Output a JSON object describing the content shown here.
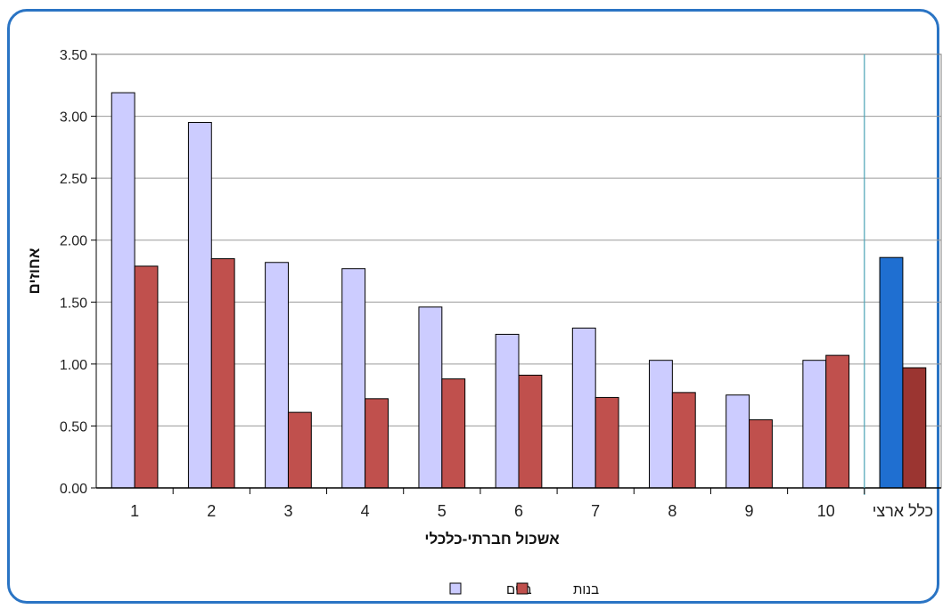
{
  "page_title": "",
  "colors": {
    "boys": "#ccccff",
    "girls": "#c0504d",
    "boys_national": "#1f6fd1",
    "girls_national": "#9b3531",
    "frame": "#2a74c4",
    "separator": "#4aa3b5"
  },
  "chart_data": {
    "type": "bar",
    "title": "",
    "xlabel": "אשכול חברתי-כלכלי",
    "ylabel": "אחוזים",
    "ylim": [
      0,
      3.5
    ],
    "yticks": [
      "0.00",
      "0.50",
      "1.00",
      "1.50",
      "2.00",
      "2.50",
      "3.00",
      "3.50"
    ],
    "grid": true,
    "legend_position": "bottom",
    "categories": [
      "1",
      "2",
      "3",
      "4",
      "5",
      "6",
      "7",
      "8",
      "9",
      "10",
      "כלל ארצי"
    ],
    "series": [
      {
        "name": "בנים",
        "values": [
          3.19,
          2.95,
          1.82,
          1.77,
          1.46,
          1.24,
          1.29,
          1.03,
          0.75,
          1.03,
          1.86
        ]
      },
      {
        "name": "בנות",
        "values": [
          1.79,
          1.85,
          0.61,
          0.72,
          0.88,
          0.91,
          0.73,
          0.77,
          0.55,
          1.07,
          0.97
        ]
      }
    ]
  }
}
